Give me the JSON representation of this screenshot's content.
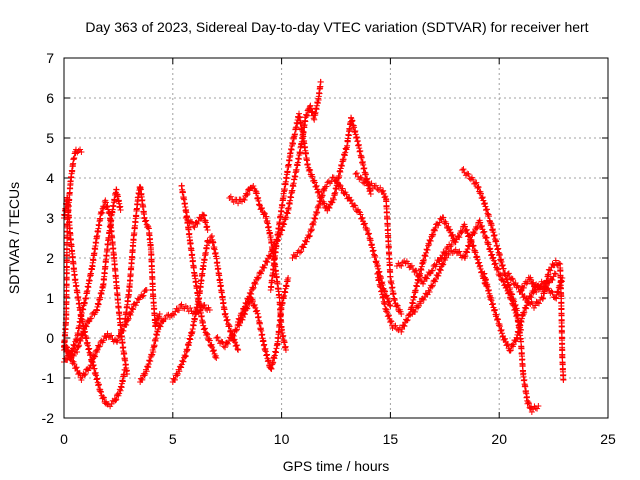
{
  "chart_data": {
    "type": "scatter",
    "title": "Day 363 of 2023, Sidereal Day-to-day VTEC variation (SDTVAR) for receiver hert",
    "xlabel": "GPS time / hours",
    "ylabel": "SDTVAR / TECUs",
    "xlim": [
      0,
      25
    ],
    "ylim": [
      -2,
      7
    ],
    "xticks": [
      0,
      5,
      10,
      15,
      20,
      25
    ],
    "yticks": [
      -2,
      -1,
      0,
      1,
      2,
      3,
      4,
      5,
      6,
      7
    ],
    "xtick_labels": [
      "0",
      "5",
      "10",
      "15",
      "20",
      "25"
    ],
    "ytick_labels": [
      "-2",
      "-1",
      "0",
      "1",
      "2",
      "3",
      "4",
      "5",
      "6",
      "7"
    ],
    "grid": true,
    "marker": "plus",
    "series_color": "#ff0000",
    "series": [
      {
        "name": "trace-1",
        "points": [
          [
            0.0,
            -0.3
          ],
          [
            0.1,
            0.5
          ],
          [
            0.15,
            2.9
          ],
          [
            0.3,
            3.9
          ],
          [
            0.45,
            4.5
          ],
          [
            0.55,
            4.7
          ],
          [
            0.8,
            4.65
          ]
        ]
      },
      {
        "name": "trace-2",
        "points": [
          [
            0.0,
            3.0
          ],
          [
            0.15,
            3.5
          ],
          [
            0.3,
            2.5
          ],
          [
            0.5,
            1.5
          ],
          [
            0.8,
            0.5
          ],
          [
            1.1,
            -0.2
          ],
          [
            1.4,
            -0.8
          ],
          [
            1.7,
            -1.4
          ],
          [
            2.0,
            -1.7
          ],
          [
            2.3,
            -1.6
          ],
          [
            2.6,
            -1.3
          ],
          [
            2.8,
            -0.8
          ]
        ]
      },
      {
        "name": "trace-3",
        "points": [
          [
            0.0,
            -0.2
          ],
          [
            0.3,
            -0.5
          ],
          [
            0.6,
            -0.3
          ],
          [
            0.9,
            0.2
          ],
          [
            1.2,
            0.5
          ],
          [
            1.5,
            0.7
          ],
          [
            1.8,
            1.3
          ],
          [
            2.0,
            2.3
          ],
          [
            2.2,
            3.1
          ],
          [
            2.4,
            3.7
          ],
          [
            2.6,
            3.2
          ]
        ]
      },
      {
        "name": "trace-4",
        "points": [
          [
            0.0,
            -0.6
          ],
          [
            0.3,
            -0.4
          ],
          [
            0.6,
            0.0
          ],
          [
            0.8,
            0.6
          ],
          [
            1.0,
            1.0
          ],
          [
            1.3,
            1.8
          ],
          [
            1.5,
            2.5
          ],
          [
            1.7,
            3.1
          ],
          [
            1.9,
            3.4
          ],
          [
            2.1,
            3.1
          ],
          [
            2.3,
            2.0
          ],
          [
            2.5,
            0.8
          ],
          [
            2.7,
            -0.2
          ],
          [
            2.9,
            -0.9
          ]
        ]
      },
      {
        "name": "trace-5",
        "points": [
          [
            0.0,
            -0.1
          ],
          [
            0.4,
            -0.6
          ],
          [
            0.8,
            -1.0
          ],
          [
            1.2,
            -0.7
          ],
          [
            1.6,
            -0.2
          ],
          [
            2.0,
            0.1
          ],
          [
            2.4,
            -0.1
          ],
          [
            2.8,
            0.3
          ],
          [
            3.2,
            0.8
          ],
          [
            3.5,
            1.0
          ],
          [
            3.8,
            1.2
          ]
        ]
      },
      {
        "name": "trace-6",
        "points": [
          [
            2.8,
            0.4
          ],
          [
            3.0,
            1.2
          ],
          [
            3.2,
            2.5
          ],
          [
            3.4,
            3.5
          ],
          [
            3.5,
            3.8
          ],
          [
            3.7,
            3.0
          ],
          [
            3.9,
            2.7
          ],
          [
            4.0,
            2.2
          ],
          [
            4.1,
            1.0
          ],
          [
            4.2,
            0.3
          ],
          [
            4.4,
            0.6
          ]
        ]
      },
      {
        "name": "trace-7",
        "points": [
          [
            3.5,
            -1.1
          ],
          [
            3.8,
            -0.8
          ],
          [
            4.1,
            -0.3
          ],
          [
            4.3,
            0.2
          ],
          [
            4.6,
            0.5
          ],
          [
            5.0,
            0.6
          ],
          [
            5.4,
            0.8
          ],
          [
            5.8,
            0.7
          ],
          [
            6.1,
            0.6
          ],
          [
            6.4,
            0.8
          ],
          [
            6.7,
            0.7
          ]
        ]
      },
      {
        "name": "trace-8",
        "points": [
          [
            5.0,
            -1.1
          ],
          [
            5.3,
            -0.8
          ],
          [
            5.6,
            -0.4
          ],
          [
            5.9,
            0.2
          ],
          [
            6.2,
            1.0
          ],
          [
            6.4,
            1.8
          ],
          [
            6.6,
            2.4
          ],
          [
            6.8,
            2.5
          ],
          [
            7.0,
            2.0
          ],
          [
            7.2,
            1.3
          ],
          [
            7.4,
            0.6
          ],
          [
            7.7,
            0.1
          ],
          [
            8.0,
            -0.3
          ]
        ]
      },
      {
        "name": "trace-9",
        "points": [
          [
            5.4,
            3.8
          ],
          [
            5.6,
            3.2
          ],
          [
            5.8,
            2.4
          ],
          [
            6.0,
            1.6
          ],
          [
            6.2,
            0.9
          ],
          [
            6.4,
            0.3
          ],
          [
            6.7,
            -0.1
          ],
          [
            7.0,
            -0.5
          ]
        ]
      },
      {
        "name": "trace-10",
        "points": [
          [
            5.6,
            3.0
          ],
          [
            6.0,
            2.8
          ],
          [
            6.4,
            3.1
          ],
          [
            6.6,
            2.7
          ]
        ]
      },
      {
        "name": "trace-11",
        "points": [
          [
            7.6,
            3.5
          ],
          [
            8.0,
            3.4
          ],
          [
            8.3,
            3.5
          ],
          [
            8.6,
            3.8
          ],
          [
            8.8,
            3.7
          ],
          [
            9.0,
            3.3
          ],
          [
            9.3,
            3.0
          ],
          [
            9.5,
            2.5
          ],
          [
            9.7,
            1.8
          ],
          [
            9.9,
            1.0
          ],
          [
            10.0,
            0.2
          ],
          [
            10.2,
            -0.3
          ]
        ]
      },
      {
        "name": "trace-12",
        "points": [
          [
            7.0,
            0.0
          ],
          [
            7.4,
            -0.2
          ],
          [
            7.8,
            0.1
          ],
          [
            8.2,
            0.5
          ],
          [
            8.6,
            1.0
          ],
          [
            8.9,
            0.6
          ],
          [
            9.2,
            -0.2
          ],
          [
            9.5,
            -0.8
          ],
          [
            9.8,
            -0.2
          ],
          [
            10.0,
            0.8
          ],
          [
            10.3,
            1.5
          ]
        ]
      },
      {
        "name": "trace-13",
        "points": [
          [
            8.0,
            0.4
          ],
          [
            8.4,
            0.9
          ],
          [
            8.8,
            1.4
          ],
          [
            9.2,
            1.8
          ],
          [
            9.6,
            2.2
          ],
          [
            10.0,
            2.7
          ],
          [
            10.3,
            3.2
          ],
          [
            10.6,
            4.0
          ],
          [
            10.9,
            4.8
          ],
          [
            11.1,
            5.5
          ],
          [
            11.3,
            5.8
          ],
          [
            11.5,
            5.5
          ],
          [
            11.7,
            6.0
          ],
          [
            11.8,
            6.4
          ]
        ]
      },
      {
        "name": "trace-14",
        "points": [
          [
            9.5,
            1.2
          ],
          [
            9.8,
            2.5
          ],
          [
            10.1,
            3.6
          ],
          [
            10.4,
            4.6
          ],
          [
            10.6,
            5.1
          ],
          [
            10.8,
            5.6
          ],
          [
            11.0,
            5.0
          ],
          [
            11.2,
            4.3
          ],
          [
            11.5,
            3.9
          ],
          [
            11.8,
            3.5
          ],
          [
            12.1,
            3.2
          ],
          [
            12.4,
            3.5
          ],
          [
            12.7,
            4.2
          ],
          [
            13.0,
            4.8
          ],
          [
            13.2,
            5.5
          ],
          [
            13.5,
            4.9
          ],
          [
            13.8,
            4.2
          ],
          [
            14.1,
            3.6
          ]
        ]
      },
      {
        "name": "trace-15",
        "points": [
          [
            10.5,
            2.0
          ],
          [
            10.9,
            2.2
          ],
          [
            11.3,
            2.6
          ],
          [
            11.7,
            3.3
          ],
          [
            12.0,
            3.8
          ],
          [
            12.4,
            4.0
          ],
          [
            12.8,
            3.7
          ],
          [
            13.2,
            3.4
          ],
          [
            13.6,
            3.1
          ],
          [
            14.0,
            2.6
          ],
          [
            14.4,
            1.8
          ],
          [
            14.7,
            1.2
          ],
          [
            15.0,
            0.8
          ]
        ]
      },
      {
        "name": "trace-16",
        "points": [
          [
            13.4,
            4.1
          ],
          [
            13.8,
            3.9
          ],
          [
            14.2,
            3.8
          ],
          [
            14.6,
            3.7
          ],
          [
            14.8,
            3.5
          ],
          [
            14.9,
            2.5
          ],
          [
            15.0,
            1.5
          ],
          [
            15.2,
            0.9
          ],
          [
            15.5,
            0.6
          ]
        ]
      },
      {
        "name": "trace-17",
        "points": [
          [
            14.4,
            1.6
          ],
          [
            14.8,
            0.7
          ],
          [
            15.1,
            0.3
          ],
          [
            15.5,
            0.2
          ],
          [
            15.9,
            0.6
          ],
          [
            16.2,
            1.3
          ],
          [
            16.5,
            1.9
          ],
          [
            16.8,
            2.4
          ],
          [
            17.1,
            2.8
          ],
          [
            17.4,
            3.0
          ],
          [
            17.7,
            2.7
          ],
          [
            18.0,
            2.4
          ]
        ]
      },
      {
        "name": "trace-18",
        "points": [
          [
            15.3,
            1.8
          ],
          [
            15.7,
            1.9
          ],
          [
            16.1,
            1.7
          ],
          [
            16.5,
            1.4
          ],
          [
            16.9,
            1.7
          ],
          [
            17.3,
            2.0
          ],
          [
            17.7,
            2.3
          ],
          [
            18.1,
            2.5
          ],
          [
            18.4,
            2.8
          ],
          [
            18.8,
            2.3
          ],
          [
            19.1,
            1.8
          ],
          [
            19.4,
            1.3
          ]
        ]
      },
      {
        "name": "trace-19",
        "points": [
          [
            16.0,
            0.6
          ],
          [
            16.4,
            0.9
          ],
          [
            16.8,
            1.2
          ],
          [
            17.2,
            1.6
          ],
          [
            17.6,
            2.1
          ],
          [
            18.0,
            2.2
          ],
          [
            18.4,
            2.0
          ],
          [
            18.8,
            2.6
          ],
          [
            19.1,
            2.9
          ],
          [
            19.4,
            2.5
          ],
          [
            19.7,
            2.0
          ],
          [
            20.0,
            1.6
          ],
          [
            20.3,
            1.3
          ],
          [
            20.6,
            0.9
          ],
          [
            20.9,
            0.4
          ],
          [
            21.0,
            0.2
          ]
        ]
      },
      {
        "name": "trace-20",
        "points": [
          [
            18.3,
            4.2
          ],
          [
            18.7,
            4.0
          ],
          [
            19.0,
            3.8
          ],
          [
            19.3,
            3.4
          ],
          [
            19.6,
            2.9
          ],
          [
            19.9,
            2.3
          ],
          [
            20.2,
            1.7
          ],
          [
            20.5,
            1.2
          ],
          [
            20.8,
            0.7
          ],
          [
            21.0,
            -0.1
          ],
          [
            21.1,
            -0.9
          ],
          [
            21.3,
            -1.6
          ],
          [
            21.5,
            -1.8
          ],
          [
            21.8,
            -1.7
          ]
        ]
      },
      {
        "name": "trace-21",
        "points": [
          [
            19.3,
            1.6
          ],
          [
            19.6,
            1.0
          ],
          [
            19.9,
            0.5
          ],
          [
            20.2,
            0.0
          ],
          [
            20.5,
            -0.3
          ],
          [
            20.8,
            0.0
          ],
          [
            21.1,
            0.6
          ],
          [
            21.4,
            1.0
          ],
          [
            21.7,
            1.3
          ],
          [
            22.0,
            1.2
          ],
          [
            22.3,
            1.4
          ],
          [
            22.6,
            1.6
          ]
        ]
      },
      {
        "name": "trace-22",
        "points": [
          [
            20.4,
            1.6
          ],
          [
            20.8,
            1.3
          ],
          [
            21.2,
            1.0
          ],
          [
            21.6,
            0.8
          ],
          [
            22.0,
            1.0
          ],
          [
            22.3,
            1.7
          ],
          [
            22.6,
            1.9
          ],
          [
            22.8,
            1.8
          ],
          [
            22.85,
            1.0
          ],
          [
            22.9,
            -0.5
          ],
          [
            22.95,
            -1.05
          ]
        ]
      },
      {
        "name": "trace-23",
        "points": [
          [
            21.0,
            1.2
          ],
          [
            21.4,
            1.5
          ],
          [
            21.7,
            1.2
          ],
          [
            22.0,
            1.4
          ],
          [
            22.3,
            1.2
          ],
          [
            22.6,
            1.0
          ],
          [
            22.9,
            1.5
          ]
        ]
      }
    ]
  }
}
